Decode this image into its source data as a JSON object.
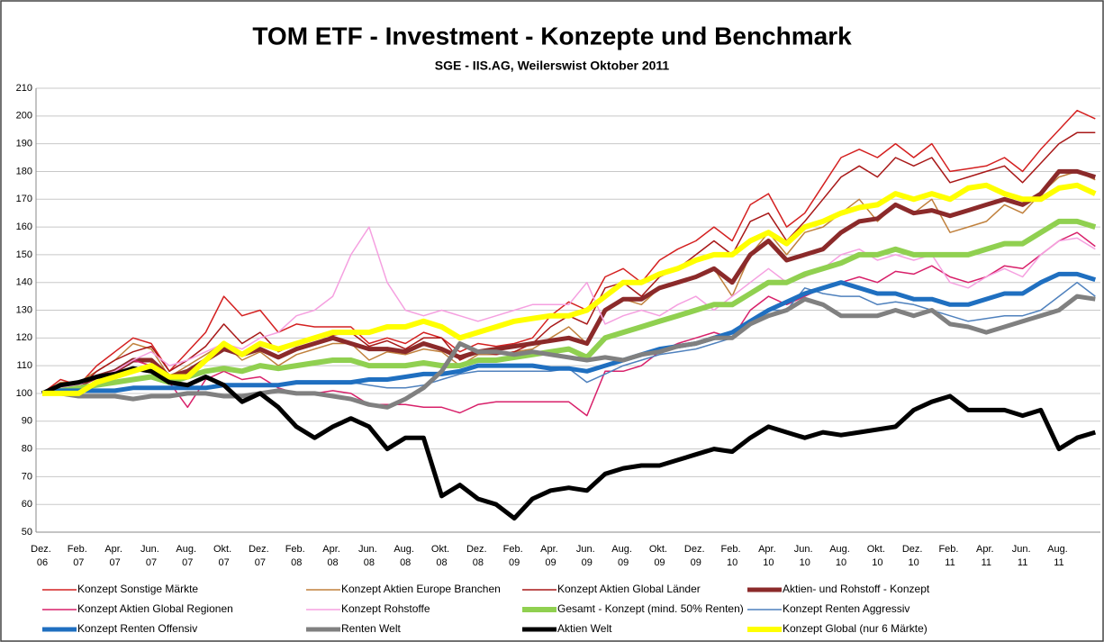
{
  "chart_data": {
    "type": "line",
    "title": "TOM ETF - Investment - Konzepte und Benchmark",
    "subtitle": "SGE - IIS.AG, Weilerswist Oktober 2011",
    "categories": [
      "Dez. 06",
      null,
      "Feb. 07",
      null,
      "Apr. 07",
      null,
      "Jun. 07",
      null,
      "Aug. 07",
      null,
      "Okt. 07",
      null,
      "Dez. 07",
      null,
      "Feb. 08",
      null,
      "Apr. 08",
      null,
      "Jun. 08",
      null,
      "Aug. 08",
      null,
      "Okt. 08",
      null,
      "Dez. 08",
      null,
      "Feb. 09",
      null,
      "Apr. 09",
      null,
      "Jun. 09",
      null,
      "Aug. 09",
      null,
      "Okt. 09",
      null,
      "Dez. 09",
      null,
      "Feb. 10",
      null,
      "Apr. 10",
      null,
      "Jun. 10",
      null,
      "Aug. 10",
      null,
      "Okt. 10",
      null,
      "Dez. 10",
      null,
      "Feb. 11",
      null,
      "Apr. 11",
      null,
      "Jun. 11",
      null,
      "Aug. 11",
      null,
      null
    ],
    "ylim": [
      50,
      210
    ],
    "yticks": [
      50,
      60,
      70,
      80,
      90,
      100,
      110,
      120,
      130,
      140,
      150,
      160,
      170,
      180,
      190,
      200,
      210
    ],
    "grid": true,
    "series": [
      {
        "name": "Konzept Sonstige Märkte",
        "color": "#d42020",
        "line_width": 1.5,
        "values": [
          100,
          105,
          103,
          110,
          115,
          120,
          118,
          108,
          115,
          122,
          135,
          128,
          130,
          122,
          125,
          124,
          124,
          124,
          118,
          120,
          118,
          122,
          120,
          115,
          118,
          117,
          118,
          120,
          128,
          133,
          130,
          142,
          145,
          140,
          148,
          152,
          155,
          160,
          155,
          168,
          172,
          160,
          165,
          175,
          185,
          188,
          185,
          190,
          185,
          190,
          180,
          181,
          182,
          185,
          180,
          188,
          195,
          202,
          199
        ]
      },
      {
        "name": "Konzept Aktien Europe Branchen",
        "color": "#c0803c",
        "line_width": 1.5,
        "values": [
          100,
          104,
          104,
          108,
          112,
          118,
          116,
          106,
          110,
          114,
          118,
          112,
          115,
          110,
          114,
          116,
          118,
          118,
          112,
          115,
          114,
          116,
          115,
          110,
          114,
          114,
          115,
          116,
          120,
          124,
          118,
          130,
          134,
          132,
          138,
          140,
          142,
          145,
          135,
          150,
          158,
          150,
          158,
          160,
          165,
          170,
          162,
          168,
          165,
          170,
          158,
          160,
          162,
          168,
          165,
          172,
          178,
          180,
          177
        ]
      },
      {
        "name": "Konzept Aktien Global Länder",
        "color": "#a81818",
        "line_width": 1.5,
        "values": [
          100,
          103,
          102,
          108,
          112,
          115,
          117,
          108,
          112,
          117,
          125,
          118,
          122,
          115,
          118,
          120,
          121,
          122,
          117,
          119,
          116,
          120,
          120,
          112,
          115,
          114,
          115,
          118,
          124,
          128,
          125,
          138,
          140,
          135,
          142,
          145,
          150,
          155,
          150,
          162,
          165,
          155,
          162,
          170,
          178,
          182,
          178,
          185,
          182,
          185,
          176,
          178,
          180,
          182,
          176,
          183,
          190,
          194,
          194
        ]
      },
      {
        "name": "Aktien- und Rohstoff - Konzept",
        "color": "#8b2a2a",
        "line_width": 5,
        "values": [
          100,
          102,
          103,
          106,
          108,
          112,
          112,
          106,
          108,
          112,
          116,
          114,
          116,
          113,
          116,
          118,
          120,
          118,
          116,
          116,
          115,
          118,
          116,
          113,
          115,
          116,
          117,
          118,
          119,
          120,
          118,
          130,
          134,
          134,
          138,
          140,
          142,
          145,
          140,
          150,
          155,
          148,
          150,
          152,
          158,
          162,
          163,
          168,
          165,
          166,
          164,
          166,
          168,
          170,
          168,
          172,
          180,
          180,
          178
        ]
      },
      {
        "name": "Konzept Aktien Global Regionen",
        "color": "#d8206a",
        "line_width": 1.5,
        "values": [
          100,
          103,
          103,
          106,
          108,
          112,
          110,
          104,
          95,
          105,
          108,
          105,
          106,
          102,
          100,
          100,
          101,
          100,
          96,
          96,
          96,
          95,
          95,
          93,
          96,
          97,
          97,
          97,
          97,
          97,
          92,
          108,
          108,
          110,
          115,
          118,
          120,
          122,
          120,
          130,
          135,
          132,
          135,
          138,
          140,
          142,
          140,
          144,
          143,
          146,
          142,
          140,
          142,
          146,
          145,
          150,
          155,
          158,
          153
        ]
      },
      {
        "name": "Konzept Rohstoffe",
        "color": "#f5a0e0",
        "line_width": 1.5,
        "values": [
          100,
          102,
          103,
          106,
          108,
          112,
          115,
          110,
          112,
          115,
          118,
          116,
          120,
          122,
          128,
          130,
          135,
          150,
          160,
          140,
          130,
          128,
          130,
          128,
          126,
          128,
          130,
          132,
          132,
          132,
          140,
          125,
          128,
          130,
          128,
          132,
          135,
          130,
          135,
          140,
          145,
          140,
          142,
          145,
          150,
          152,
          148,
          150,
          148,
          150,
          140,
          138,
          142,
          145,
          142,
          150,
          155,
          156,
          152
        ]
      },
      {
        "name": "Gesamt - Konzept (mind. 50% Renten)",
        "color": "#90d050",
        "line_width": 6,
        "values": [
          100,
          101,
          102,
          103,
          104,
          105,
          106,
          104,
          106,
          108,
          109,
          108,
          110,
          109,
          110,
          111,
          112,
          112,
          110,
          110,
          110,
          111,
          110,
          110,
          112,
          112,
          113,
          114,
          115,
          116,
          113,
          120,
          122,
          124,
          126,
          128,
          130,
          132,
          132,
          136,
          140,
          140,
          143,
          145,
          147,
          150,
          150,
          152,
          150,
          150,
          150,
          150,
          152,
          154,
          154,
          158,
          162,
          162,
          160
        ]
      },
      {
        "name": "Konzept Renten Aggressiv",
        "color": "#4f81bd",
        "line_width": 1.5,
        "values": [
          100,
          100,
          101,
          101,
          101,
          102,
          102,
          102,
          102,
          102,
          103,
          103,
          103,
          103,
          104,
          104,
          104,
          104,
          103,
          102,
          102,
          103,
          105,
          107,
          108,
          108,
          108,
          108,
          108,
          109,
          104,
          107,
          110,
          112,
          114,
          115,
          116,
          118,
          120,
          125,
          130,
          130,
          138,
          136,
          135,
          135,
          132,
          133,
          132,
          130,
          128,
          126,
          127,
          128,
          128,
          130,
          135,
          140,
          135
        ]
      },
      {
        "name": "Konzept Renten Offensiv",
        "color": "#1f6fc0",
        "line_width": 5,
        "values": [
          100,
          101,
          101,
          101,
          101,
          102,
          102,
          102,
          102,
          102,
          103,
          103,
          103,
          103,
          104,
          104,
          104,
          104,
          105,
          105,
          106,
          107,
          107,
          108,
          110,
          110,
          110,
          110,
          109,
          109,
          108,
          110,
          112,
          114,
          116,
          117,
          118,
          120,
          122,
          126,
          130,
          133,
          136,
          138,
          140,
          138,
          136,
          136,
          134,
          134,
          132,
          132,
          134,
          136,
          136,
          140,
          143,
          143,
          141
        ]
      },
      {
        "name": "Renten Welt",
        "color": "#808080",
        "line_width": 5,
        "values": [
          100,
          100,
          99,
          99,
          99,
          98,
          99,
          99,
          100,
          100,
          99,
          99,
          100,
          101,
          100,
          100,
          99,
          98,
          96,
          95,
          98,
          102,
          108,
          118,
          115,
          115,
          114,
          115,
          114,
          113,
          112,
          113,
          112,
          114,
          115,
          117,
          118,
          120,
          120,
          125,
          128,
          130,
          134,
          132,
          128,
          128,
          128,
          130,
          128,
          130,
          125,
          124,
          122,
          124,
          126,
          128,
          130,
          135,
          134
        ]
      },
      {
        "name": "Aktien Welt",
        "color": "#000000",
        "line_width": 5,
        "values": [
          100,
          103,
          104,
          106,
          107,
          109,
          108,
          104,
          103,
          106,
          103,
          97,
          100,
          95,
          88,
          84,
          88,
          91,
          88,
          80,
          84,
          84,
          63,
          67,
          62,
          60,
          55,
          62,
          65,
          66,
          65,
          71,
          73,
          74,
          74,
          76,
          78,
          80,
          79,
          84,
          88,
          86,
          84,
          86,
          85,
          86,
          87,
          88,
          94,
          97,
          99,
          94,
          94,
          94,
          92,
          94,
          80,
          84,
          86
        ]
      },
      {
        "name": "Konzept Global (nur 6 Märkte)",
        "color": "#ffff00",
        "line_width": 6,
        "values": [
          100,
          100,
          100,
          104,
          106,
          108,
          110,
          106,
          106,
          112,
          118,
          114,
          118,
          116,
          118,
          120,
          122,
          122,
          122,
          124,
          124,
          126,
          124,
          120,
          122,
          124,
          126,
          127,
          128,
          128,
          130,
          135,
          140,
          140,
          143,
          145,
          148,
          150,
          150,
          155,
          158,
          154,
          160,
          162,
          165,
          167,
          168,
          172,
          170,
          172,
          170,
          174,
          175,
          172,
          170,
          170,
          174,
          175,
          172
        ]
      }
    ]
  }
}
